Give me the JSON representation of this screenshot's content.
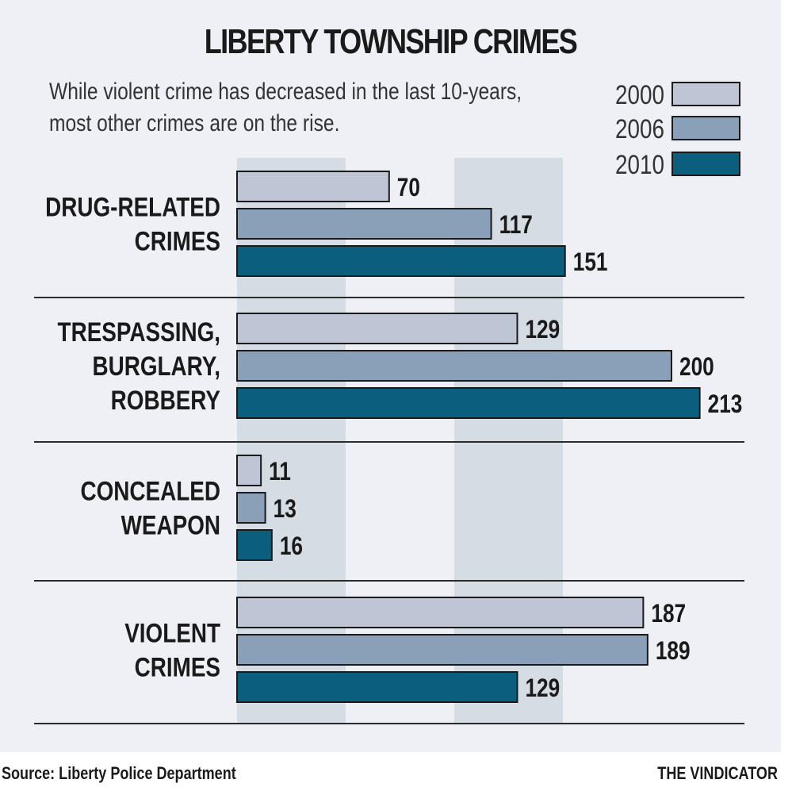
{
  "title": "LIBERTY TOWNSHIP CRIMES",
  "subtitle": [
    "While violent crime has decreased in the last 10-years,",
    "most other crimes are on the rise."
  ],
  "footer": {
    "source": "Source: Liberty Police Department",
    "brand": "THE VINDICATOR"
  },
  "colors": {
    "background": "#eef0f5",
    "band": "#d6dce4",
    "series": [
      "#bfc5d4",
      "#8a9fb8",
      "#0c5e7e"
    ]
  },
  "chart_data": {
    "type": "bar",
    "orientation": "horizontal",
    "categories": [
      [
        "DRUG-RELATED",
        "CRIMES"
      ],
      [
        "TRESPASSING,",
        "BURGLARY,",
        "ROBBERY"
      ],
      [
        "CONCEALED",
        "WEAPON"
      ],
      [
        "VIOLENT",
        "CRIMES"
      ]
    ],
    "series": [
      {
        "name": "2000",
        "values": [
          70,
          129,
          11,
          187
        ]
      },
      {
        "name": "2006",
        "values": [
          117,
          200,
          13,
          189
        ]
      },
      {
        "name": "2010",
        "values": [
          151,
          213,
          16,
          129
        ]
      }
    ],
    "xlim": [
      0,
      235
    ],
    "grid": false,
    "background_bands": [
      [
        0,
        50
      ],
      [
        100,
        150
      ]
    ],
    "legend": "top-right",
    "data_labels": true
  }
}
